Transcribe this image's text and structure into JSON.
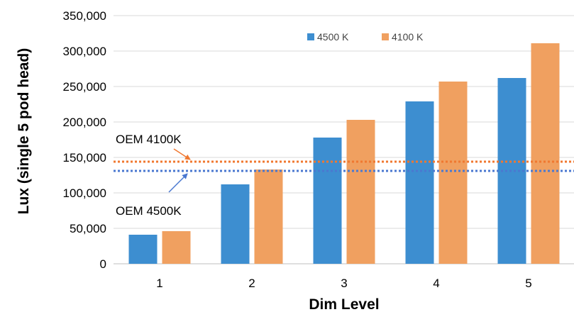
{
  "chart_data": {
    "type": "bar",
    "title": "",
    "xlabel": "Dim Level",
    "ylabel": "Lux (single 5 pod head)",
    "categories": [
      "1",
      "2",
      "3",
      "4",
      "5"
    ],
    "series": [
      {
        "name": "4500 K",
        "color": "#3d8ed0",
        "values": [
          41000,
          112000,
          178000,
          229000,
          262000
        ]
      },
      {
        "name": "4100 K",
        "color": "#f0a060",
        "values": [
          46000,
          133000,
          203000,
          257000,
          311000
        ]
      }
    ],
    "ylim": [
      0,
      350000
    ],
    "yticks": [
      0,
      50000,
      100000,
      150000,
      200000,
      250000,
      300000,
      350000
    ],
    "ytick_labels": [
      "0",
      "50,000",
      "100,000",
      "150,000",
      "200,000",
      "250,000",
      "300,000",
      "350,000"
    ],
    "grid": true,
    "legend_position": "top-center",
    "reference_lines": [
      {
        "label": "OEM 4100K",
        "value": 144000,
        "color": "#f07830",
        "style": "dotted"
      },
      {
        "label": "OEM 4500K",
        "value": 131000,
        "color": "#4a78d0",
        "style": "dotted"
      }
    ]
  }
}
